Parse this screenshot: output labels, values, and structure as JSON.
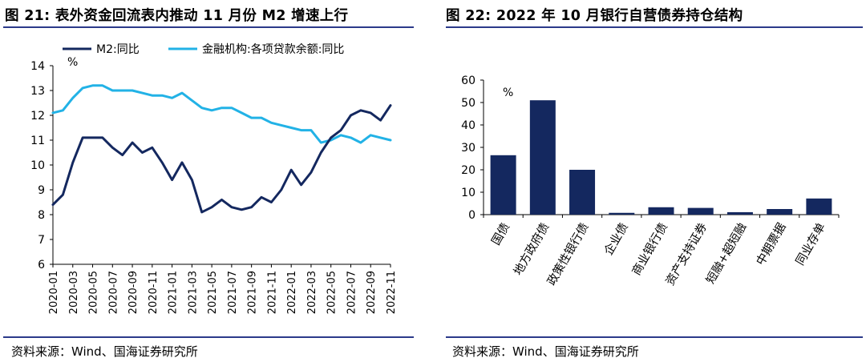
{
  "figures": [
    {
      "title": "图 21: 表外资金回流表内推动 11 月份 M2 增速上行",
      "source": "资料来源：Wind、国海证券研究所"
    },
    {
      "title": "图 22: 2022 年 10 月银行自营债券持仓结构",
      "source": "资料来源：Wind、国海证券研究所"
    }
  ],
  "colors": {
    "dark_navy": "#14285f",
    "light_blue": "#22b2e6",
    "rule": "#2b3a8a"
  },
  "chart_data": [
    {
      "type": "line",
      "title": "",
      "ylabel": "%",
      "ylim": [
        6,
        14
      ],
      "yticks": [
        6,
        7,
        8,
        9,
        10,
        11,
        12,
        13,
        14
      ],
      "xticks": [
        "2020-01",
        "2020-03",
        "2020-05",
        "2020-07",
        "2020-09",
        "2020-11",
        "2021-01",
        "2021-03",
        "2021-05",
        "2021-07",
        "2021-09",
        "2021-11",
        "2022-01",
        "2022-03",
        "2022-05",
        "2022-07",
        "2022-09",
        "2022-11"
      ],
      "x": [
        "2020-01",
        "2020-02",
        "2020-03",
        "2020-04",
        "2020-05",
        "2020-06",
        "2020-07",
        "2020-08",
        "2020-09",
        "2020-10",
        "2020-11",
        "2020-12",
        "2021-01",
        "2021-02",
        "2021-03",
        "2021-04",
        "2021-05",
        "2021-06",
        "2021-07",
        "2021-08",
        "2021-09",
        "2021-10",
        "2021-11",
        "2021-12",
        "2022-01",
        "2022-02",
        "2022-03",
        "2022-04",
        "2022-05",
        "2022-06",
        "2022-07",
        "2022-08",
        "2022-09",
        "2022-10",
        "2022-11"
      ],
      "series": [
        {
          "name": "M2:同比",
          "color": "#14285f",
          "values": [
            8.4,
            8.8,
            10.1,
            11.1,
            11.1,
            11.1,
            10.7,
            10.4,
            10.9,
            10.5,
            10.7,
            10.1,
            9.4,
            10.1,
            9.4,
            8.1,
            8.3,
            8.6,
            8.3,
            8.2,
            8.3,
            8.7,
            8.5,
            9.0,
            9.8,
            9.2,
            9.7,
            10.5,
            11.1,
            11.4,
            12.0,
            12.2,
            12.1,
            11.8,
            12.4
          ]
        },
        {
          "name": "金融机构:各项贷款余额:同比",
          "color": "#22b2e6",
          "values": [
            12.1,
            12.2,
            12.7,
            13.1,
            13.2,
            13.2,
            13.0,
            13.0,
            13.0,
            12.9,
            12.8,
            12.8,
            12.7,
            12.9,
            12.6,
            12.3,
            12.2,
            12.3,
            12.3,
            12.1,
            11.9,
            11.9,
            11.7,
            11.6,
            11.5,
            11.4,
            11.4,
            10.9,
            11.0,
            11.2,
            11.1,
            10.9,
            11.2,
            11.1,
            11.0
          ]
        }
      ]
    },
    {
      "type": "bar",
      "title": "",
      "ylabel": "%",
      "ylim": [
        0,
        60
      ],
      "yticks": [
        0,
        10,
        20,
        30,
        40,
        50,
        60
      ],
      "categories": [
        "国债",
        "地方政府债",
        "政策性银行债",
        "企业债",
        "商业银行债",
        "资产支持证券",
        "短融+超短融",
        "中期票据",
        "同业存单"
      ],
      "values": [
        26.5,
        51.0,
        20.0,
        0.8,
        3.3,
        3.0,
        1.1,
        2.5,
        7.2
      ],
      "color": "#14285f"
    }
  ]
}
